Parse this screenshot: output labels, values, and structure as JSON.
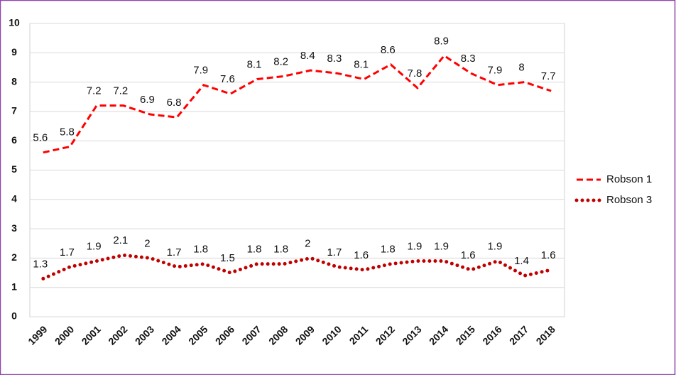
{
  "chart_data": {
    "type": "line",
    "categories": [
      "1999",
      "2000",
      "2001",
      "2002",
      "2003",
      "2004",
      "2005",
      "2006",
      "2007",
      "2008",
      "2009",
      "2010",
      "2011",
      "2012",
      "2013",
      "2014",
      "2015",
      "2016",
      "2017",
      "2018"
    ],
    "series": [
      {
        "name": "Robson 1",
        "color": "#ff0000",
        "style": "dashed",
        "values": [
          5.6,
          5.8,
          7.2,
          7.2,
          6.9,
          6.8,
          7.9,
          7.6,
          8.1,
          8.2,
          8.4,
          8.3,
          8.1,
          8.6,
          7.8,
          8.9,
          8.3,
          7.9,
          8,
          7.7
        ]
      },
      {
        "name": "Robson 3",
        "color": "#c00000",
        "style": "dotted",
        "values": [
          1.3,
          1.7,
          1.9,
          2.1,
          2,
          1.7,
          1.8,
          1.5,
          1.8,
          1.8,
          2,
          1.7,
          1.6,
          1.8,
          1.9,
          1.9,
          1.6,
          1.9,
          1.4,
          1.6
        ]
      }
    ],
    "ylim": [
      0,
      10
    ],
    "yticks": [
      0,
      1,
      2,
      3,
      4,
      5,
      6,
      7,
      8,
      9,
      10
    ],
    "grid": true,
    "legend": "right"
  }
}
